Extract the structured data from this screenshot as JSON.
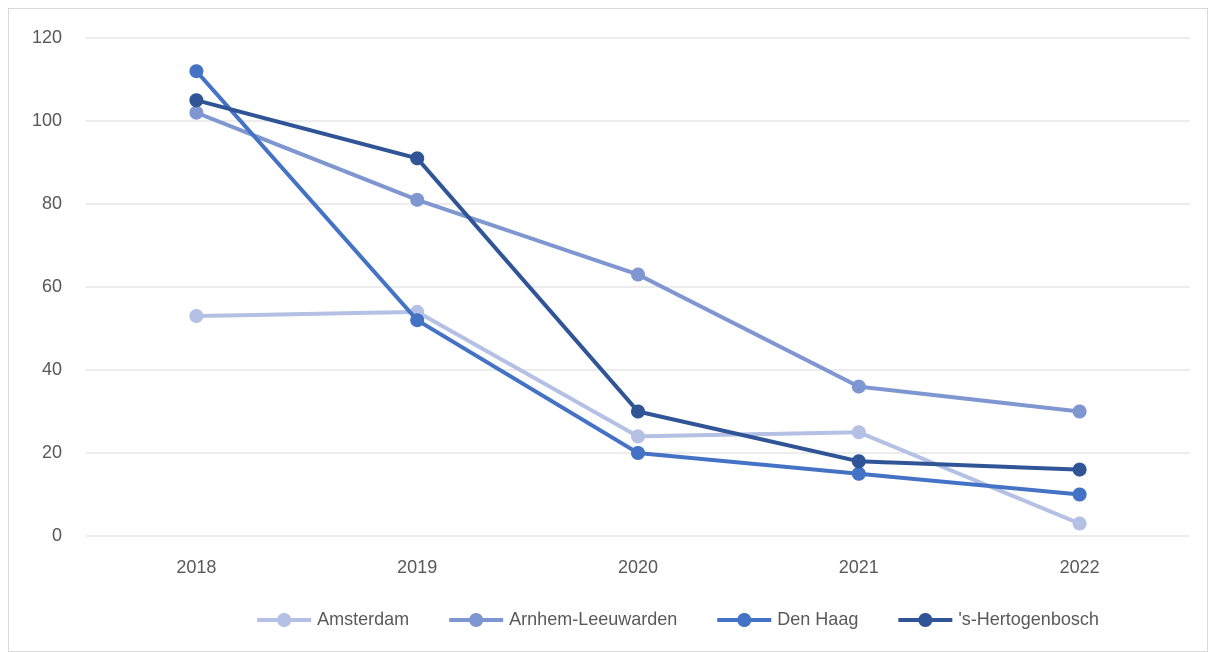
{
  "chart_data": {
    "type": "line",
    "categories": [
      "2018",
      "2019",
      "2020",
      "2021",
      "2022"
    ],
    "series": [
      {
        "name": "Amsterdam",
        "color": "#b4c0e4",
        "values": [
          53,
          54,
          24,
          25,
          3
        ]
      },
      {
        "name": "Arnhem-Leeuwarden",
        "color": "#7f97d1",
        "values": [
          102,
          81,
          63,
          36,
          30
        ]
      },
      {
        "name": "Den Haag",
        "color": "#4472c4",
        "values": [
          112,
          52,
          20,
          15,
          10
        ]
      },
      {
        "name": "'s-Hertogenbosch",
        "color": "#2f5597",
        "values": [
          105,
          91,
          30,
          18,
          16
        ]
      }
    ],
    "ylim": [
      0,
      120
    ],
    "yticks": [
      0,
      20,
      40,
      60,
      80,
      100,
      120
    ],
    "grid": true,
    "legend": "bottom"
  }
}
